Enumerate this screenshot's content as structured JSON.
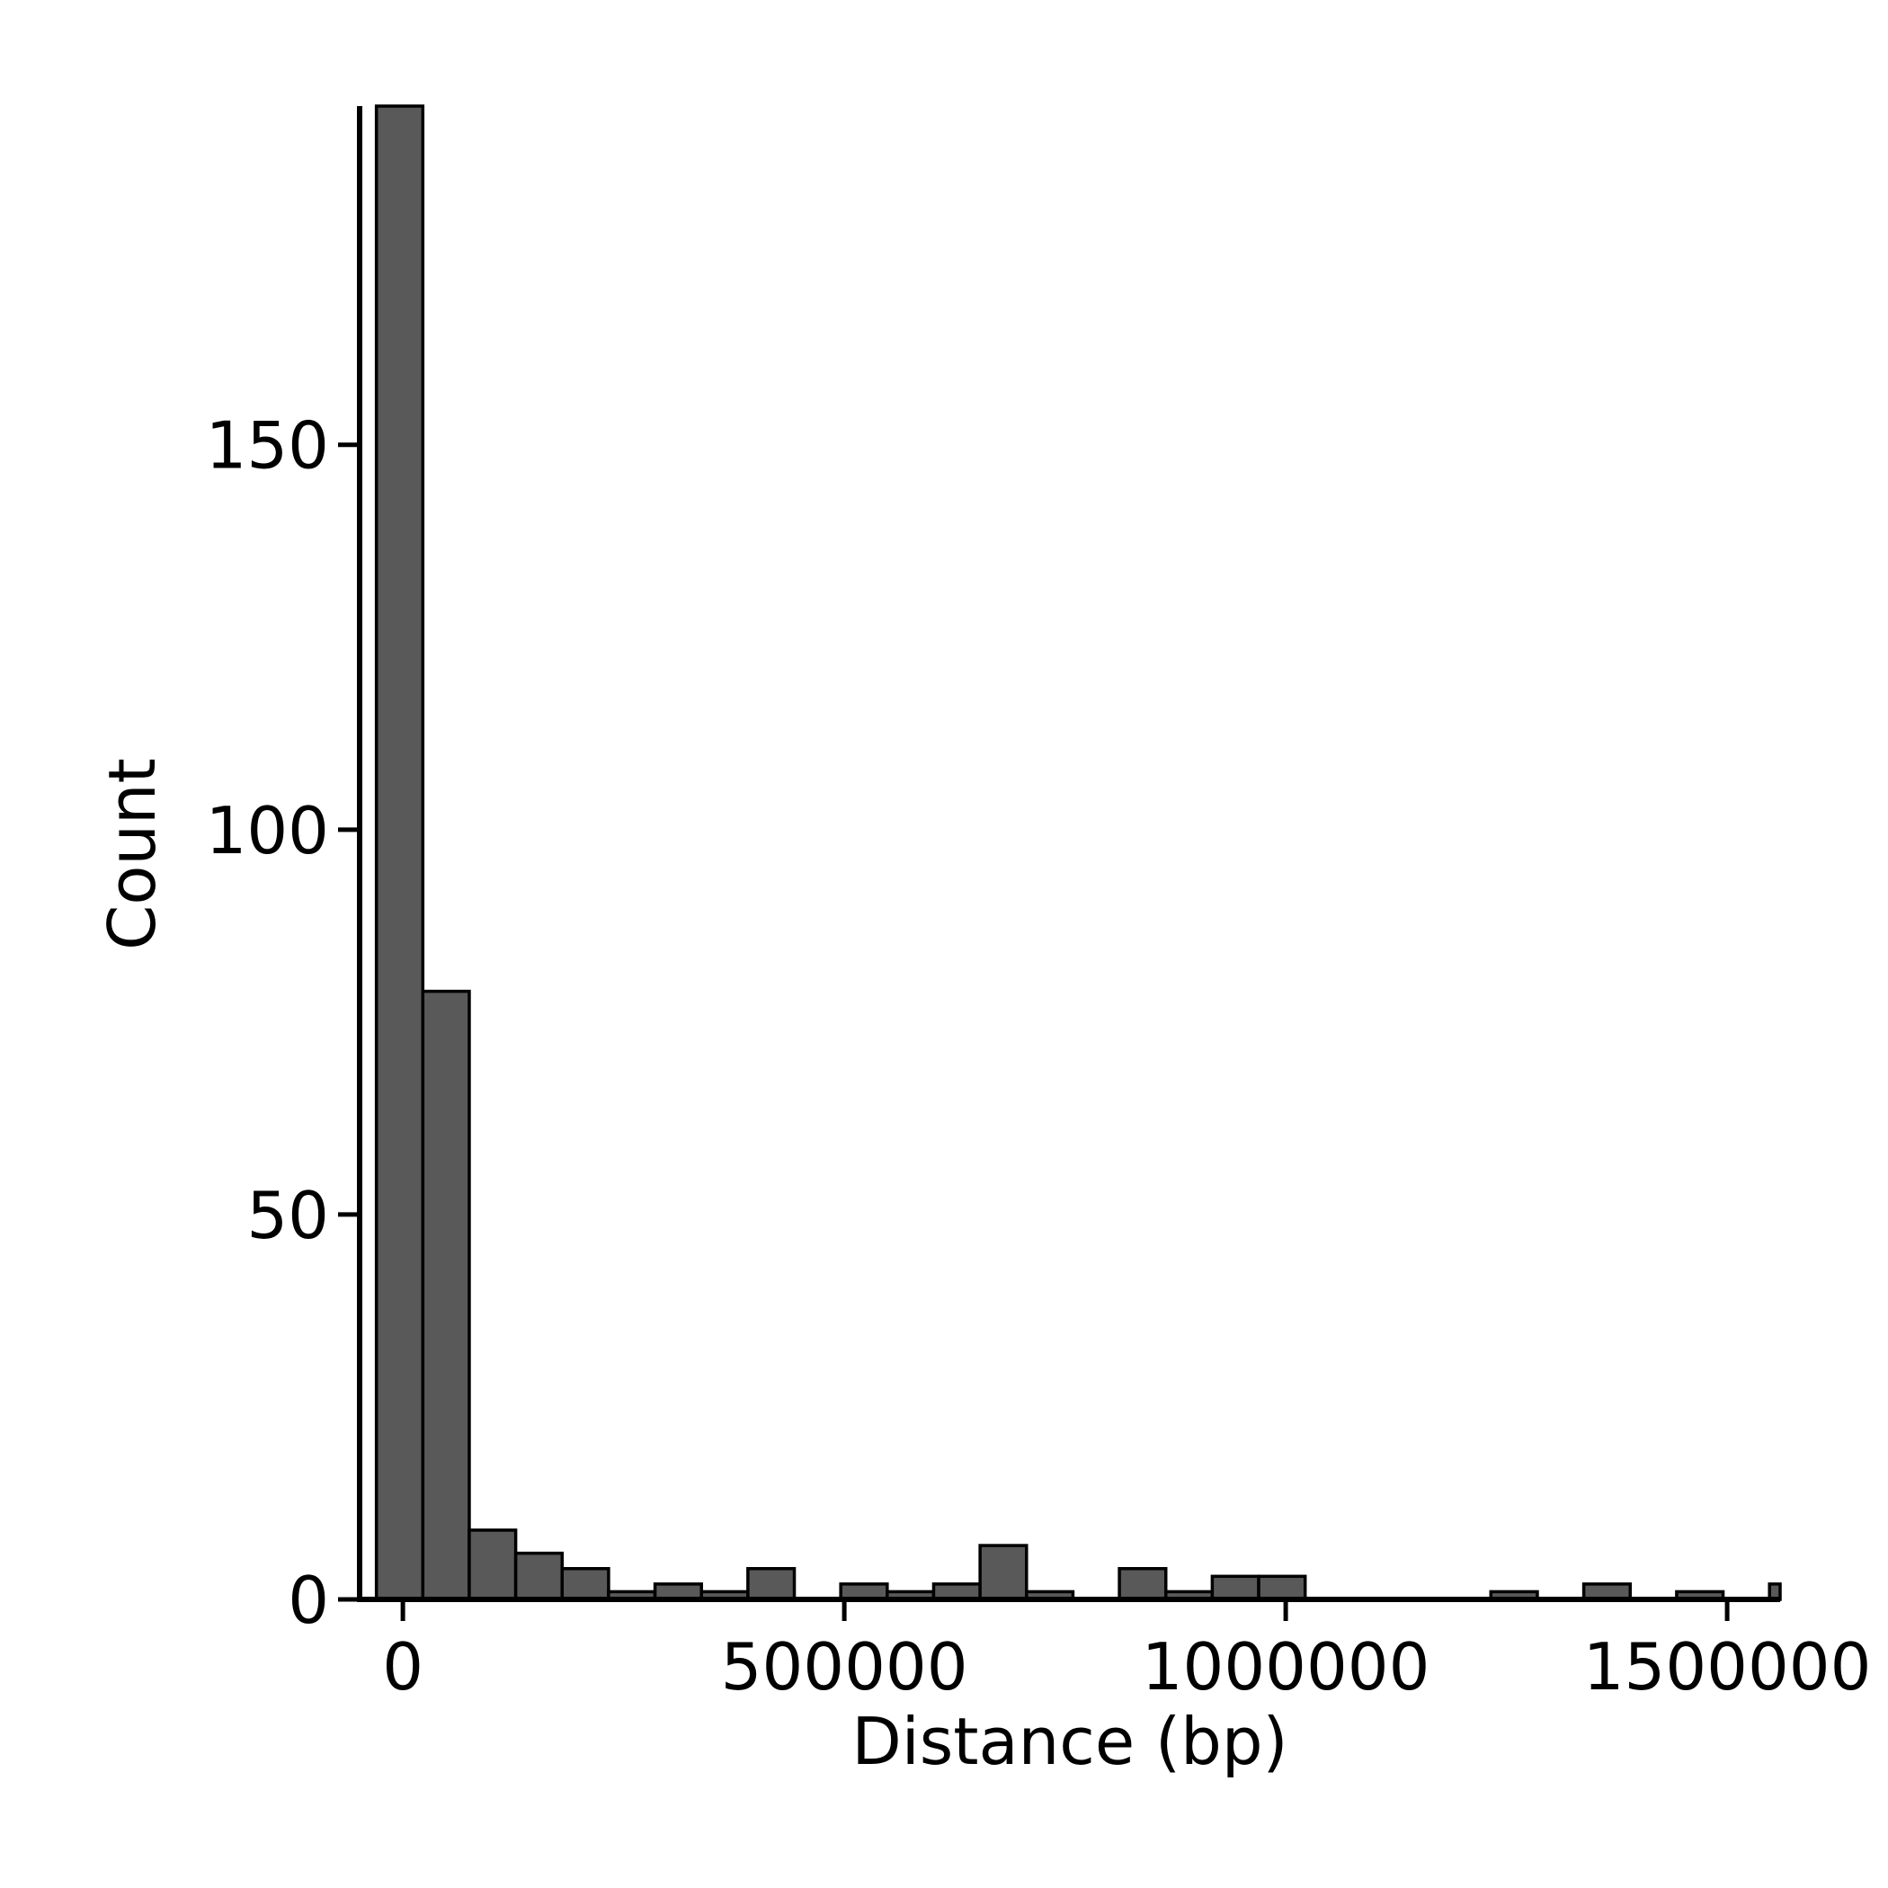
{
  "chart_data": {
    "type": "bar",
    "title": "",
    "xlabel": "Distance (bp)",
    "ylabel": "Count",
    "xlim": [
      -49000,
      1560000
    ],
    "ylim": [
      0,
      194
    ],
    "bin_start": -30000,
    "bin_width": 52600,
    "counts": [
      194,
      79,
      9,
      6,
      4,
      1,
      2,
      1,
      4,
      0,
      2,
      1,
      2,
      7,
      1,
      0,
      4,
      1,
      3,
      3,
      0,
      0,
      0,
      0,
      1,
      0,
      2,
      0,
      1,
      0,
      2
    ],
    "x_ticks": [
      {
        "value": 0,
        "label": "0"
      },
      {
        "value": 500000,
        "label": "500000"
      },
      {
        "value": 1000000,
        "label": "1000000"
      },
      {
        "value": 1500000,
        "label": "1500000"
      }
    ],
    "y_ticks": [
      {
        "value": 0,
        "label": "0"
      },
      {
        "value": 50,
        "label": "50"
      },
      {
        "value": 100,
        "label": "100"
      },
      {
        "value": 150,
        "label": "150"
      }
    ],
    "bar_color": "#595959",
    "edge_color": "#000000",
    "grid": false,
    "legend": "none"
  }
}
